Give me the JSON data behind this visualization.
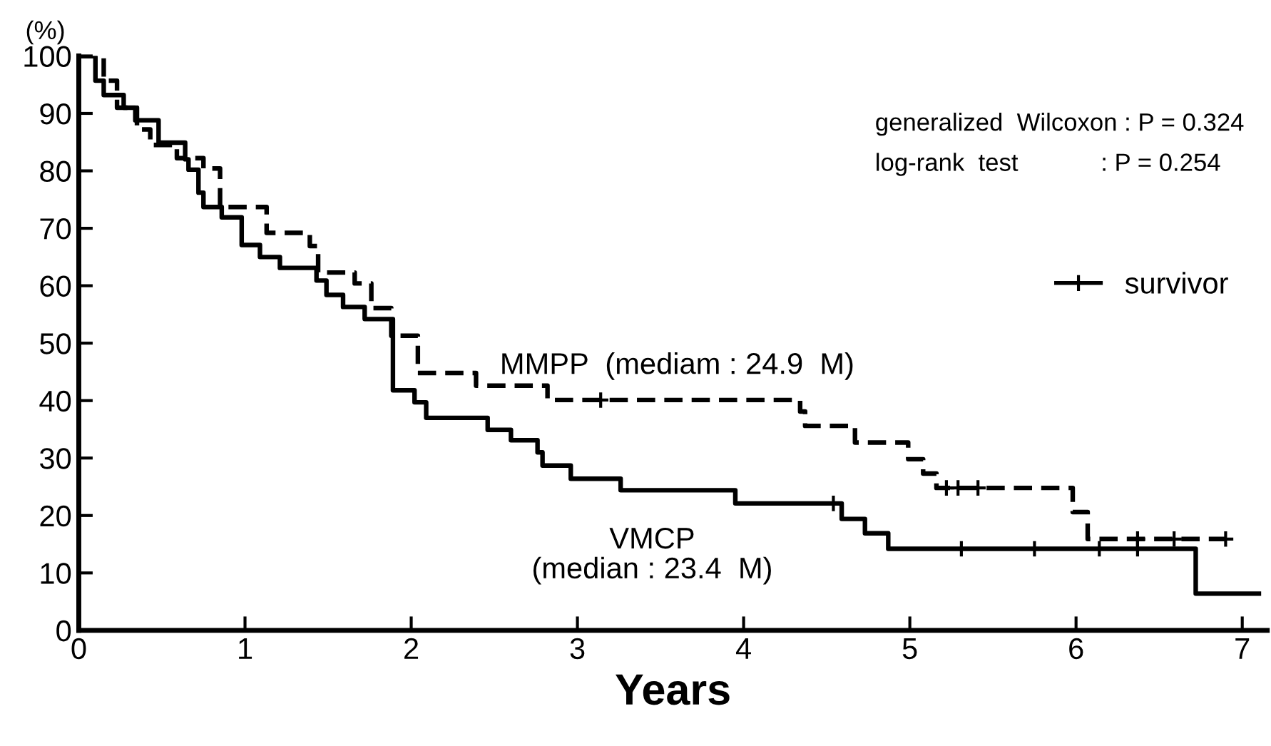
{
  "chart_data": {
    "type": "step",
    "xlabel": "Years",
    "ylabel": "(%)",
    "xlim": [
      0,
      7.15
    ],
    "ylim": [
      0,
      100
    ],
    "xticks": [
      0,
      1,
      2,
      3,
      4,
      5,
      6,
      7
    ],
    "yticks": [
      0,
      10,
      20,
      30,
      40,
      50,
      60,
      70,
      80,
      90,
      100
    ],
    "grid": false,
    "legend": "right",
    "annotations": [
      "generalized  Wilcoxon : P = 0.324",
      "log-rank  test            : P = 0.254"
    ],
    "series": [
      {
        "name": "MMPP  (mediam : 24.9  M)",
        "color": "#000000",
        "line_style": "dashed",
        "x": [
          0,
          0.15,
          0.23,
          0.35,
          0.43,
          0.59,
          0.75,
          0.85,
          1.13,
          1.39,
          1.44,
          1.66,
          1.76,
          1.88,
          2.04,
          2.39,
          2.82,
          4.34,
          4.37,
          4.67,
          4.99,
          5.08,
          5.16,
          5.98,
          6.07,
          6.9
        ],
        "values": [
          100,
          95.7,
          91,
          87.2,
          84.5,
          82.2,
          80.4,
          73.7,
          69.2,
          66.9,
          62.3,
          60.4,
          56.1,
          51.3,
          44.8,
          42.6,
          40.1,
          38.1,
          35.6,
          32.7,
          29.8,
          27.3,
          24.8,
          20.6,
          15.9,
          15.9
        ]
      },
      {
        "name": "VMCP\n(median : 23.4  M)",
        "color": "#000000",
        "line_style": "solid",
        "x": [
          0,
          0.1,
          0.15,
          0.27,
          0.34,
          0.48,
          0.64,
          0.66,
          0.72,
          0.75,
          0.86,
          0.98,
          1.09,
          1.21,
          1.43,
          1.49,
          1.59,
          1.72,
          1.89,
          2.02,
          2.09,
          2.46,
          2.6,
          2.76,
          2.79,
          2.96,
          3.26,
          3.95,
          4.59,
          4.73,
          4.87,
          6.72,
          7.1
        ],
        "values": [
          100,
          95.7,
          93.2,
          91,
          88.8,
          84.9,
          82,
          80.2,
          76.2,
          73.7,
          71.9,
          67.1,
          65,
          63.1,
          60.9,
          58.4,
          56.3,
          54.2,
          41.8,
          39.7,
          37,
          34.9,
          33.1,
          31,
          28.7,
          26.4,
          24.4,
          22.1,
          19.4,
          16.9,
          14.2,
          6.4,
          6.4
        ]
      },
      {
        "name": "survivor",
        "type": "scatter",
        "marker": "cross",
        "color": "#000000",
        "x": [
          3.14,
          5.22,
          5.29,
          5.41,
          6.37,
          6.59,
          6.9,
          4.54,
          5.31,
          5.75,
          6.14,
          6.37
        ],
        "values": [
          40.1,
          24.8,
          24.8,
          24.8,
          15.9,
          15.9,
          15.9,
          22.1,
          14.2,
          14.2,
          14.2,
          14.2
        ]
      }
    ]
  }
}
